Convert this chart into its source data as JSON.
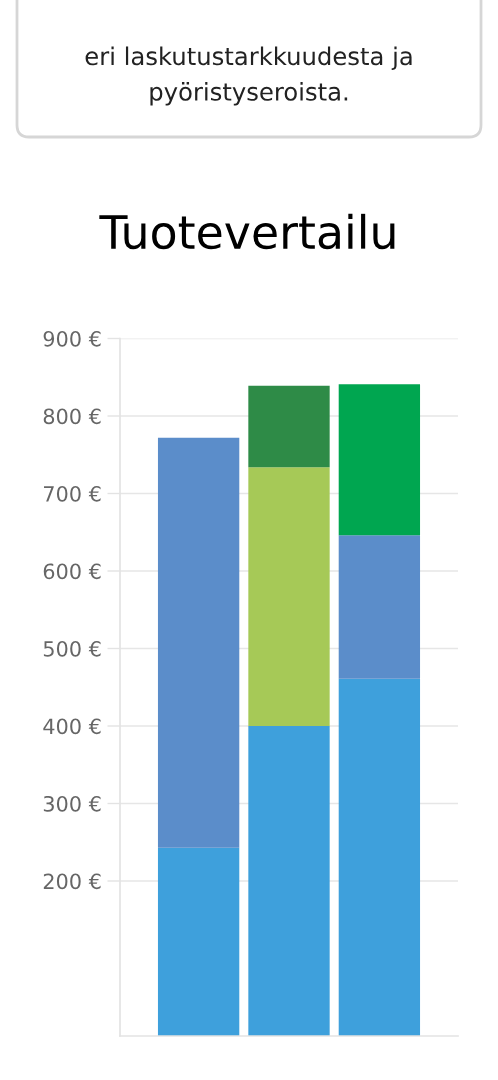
{
  "chart_data": {
    "type": "bar",
    "title": "Tuotevertailu",
    "annotations": [
      "eri laskutustarkkuudesta ja pyöristyseroista."
    ],
    "categories": [
      null,
      null,
      null
    ],
    "stacked": true,
    "series": [
      {
        "color": "#3ea0dc",
        "values": [
          243,
          400,
          461
        ]
      },
      {
        "color": "#5b8dca",
        "values": [
          529,
          null,
          185
        ]
      },
      {
        "color": "#a6c957",
        "values": [
          null,
          334,
          null
        ]
      },
      {
        "color": "#2e8b47",
        "values": [
          null,
          105,
          null
        ]
      },
      {
        "color": "#00a650",
        "values": [
          null,
          null,
          195
        ]
      }
    ],
    "ylim": [
      0,
      900
    ],
    "yticks": [
      {
        "value": 200,
        "label": "200 €"
      },
      {
        "value": 300,
        "label": "300 €"
      },
      {
        "value": 400,
        "label": "400 €"
      },
      {
        "value": 500,
        "label": "500 €"
      },
      {
        "value": 600,
        "label": "600 €"
      },
      {
        "value": 700,
        "label": "700 €"
      },
      {
        "value": 800,
        "label": "800 €"
      },
      {
        "value": 900,
        "label": "900 €"
      }
    ],
    "grid": "y",
    "tick_labels": "y"
  }
}
